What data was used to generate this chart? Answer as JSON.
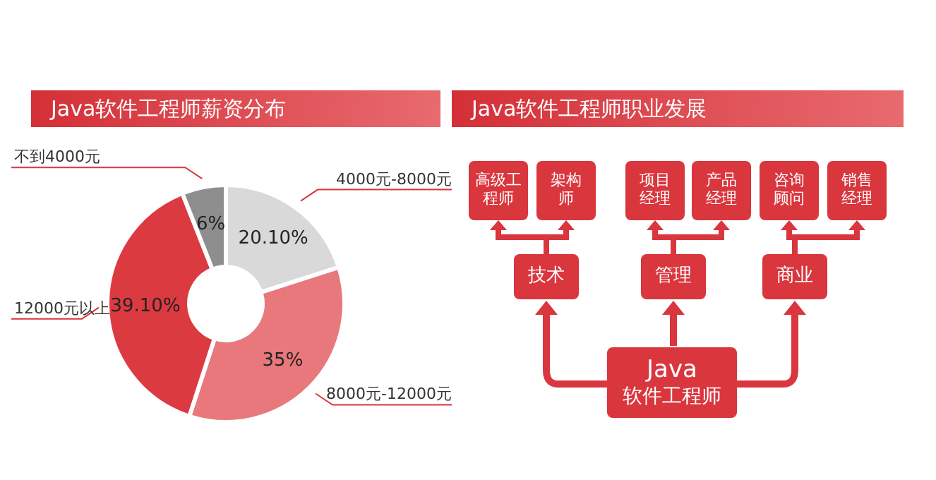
{
  "chart_data": [
    {
      "type": "donut",
      "title": "Java软件工程师薪资分布",
      "categories": [
        "4000元-8000元",
        "8000元-12000元",
        "12000元以上",
        "不到4000元"
      ],
      "values": [
        20.1,
        35,
        39.1,
        6
      ],
      "value_labels": [
        "20.10%",
        "35%",
        "39.10%",
        "6%"
      ],
      "colors": [
        "#d9d9d9",
        "#e8787c",
        "#dc3a41",
        "#8e8e8e"
      ]
    },
    {
      "type": "other",
      "title": "Java软件工程师职业发展",
      "annotations": [
        "高级工程师",
        "架构师",
        "项目经理",
        "产品经理",
        "咨询顾问",
        "销售经理",
        "技术",
        "管理",
        "商业",
        "Java",
        "软件工程师"
      ]
    }
  ]
}
